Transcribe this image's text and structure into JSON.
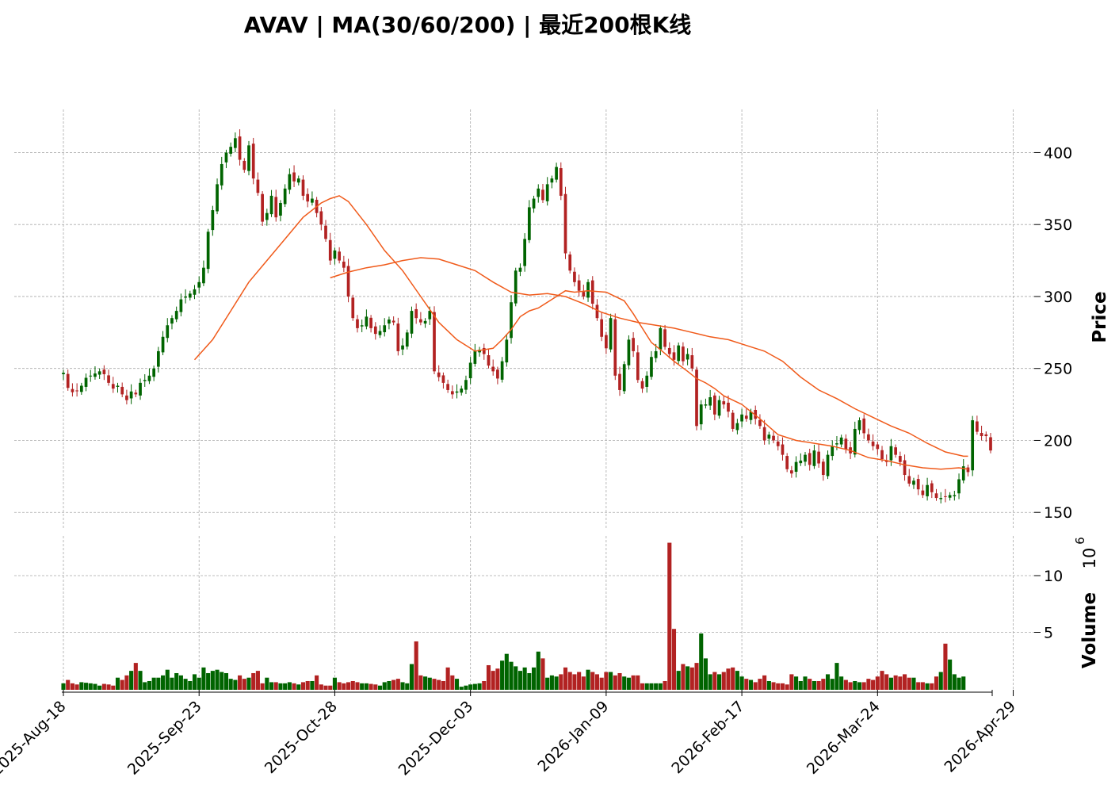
{
  "title": "AVAV  |  MA(30/60/200)  |  最近200根K线",
  "chart_data": [
    {
      "type": "candlestick",
      "ticker": "AVAV",
      "ylabel": "Price",
      "ylim": [
        138,
        430
      ],
      "yticks": [
        150,
        200,
        250,
        300,
        350,
        400
      ],
      "grid": true,
      "colors": {
        "up": "#006400",
        "down": "#b22222",
        "ma": "#f05a1a"
      },
      "x_tick_labels": [
        "2025-Aug-18",
        "2025-Sep-23",
        "2025-Oct-28",
        "2025-Dec-03",
        "2026-Jan-09",
        "2026-Feb-17",
        "2026-Mar-24",
        "2026-Apr-29"
      ],
      "closes": [
        247.0,
        236.5,
        233.5,
        234.5,
        238.0,
        243.5,
        245.0,
        246.5,
        248.0,
        246.0,
        240.0,
        236.0,
        238.0,
        232.0,
        228.0,
        234.0,
        232.0,
        240.0,
        242.0,
        245.0,
        250.0,
        262.0,
        272.0,
        280.0,
        285.0,
        290.0,
        298.0,
        300.0,
        302.0,
        305.0,
        310.0,
        320.0,
        345.0,
        360.0,
        378.0,
        392.0,
        400.0,
        404.0,
        410.0,
        395.0,
        388.0,
        405.0,
        382.0,
        372.0,
        352.0,
        358.0,
        370.0,
        355.0,
        365.0,
        375.0,
        385.0,
        380.0,
        382.0,
        370.0,
        366.0,
        368.0,
        358.0,
        350.0,
        340.0,
        325.0,
        332.0,
        325.0,
        320.0,
        300.0,
        285.0,
        278.0,
        280.0,
        286.0,
        278.0,
        274.0,
        276.0,
        280.0,
        284.0,
        282.0,
        262.0,
        266.0,
        275.0,
        290.0,
        285.0,
        282.0,
        283.0,
        290.0,
        248.0,
        244.0,
        240.0,
        235.0,
        232.0,
        234.0,
        236.0,
        242.0,
        254.0,
        262.0,
        263.0,
        260.0,
        252.0,
        248.0,
        243.0,
        255.0,
        270.0,
        296.0,
        318.0,
        320.0,
        340.0,
        362.0,
        368.0,
        375.0,
        367.0,
        378.0,
        382.0,
        390.0,
        370.0,
        330.0,
        318.0,
        310.0,
        304.0,
        300.0,
        310.0,
        295.0,
        285.0,
        272.0,
        264.0,
        285.0,
        245.0,
        235.0,
        253.0,
        270.0,
        262.0,
        242.0,
        236.0,
        245.0,
        258.0,
        262.0,
        278.0,
        265.0,
        260.0,
        256.0,
        266.0,
        255.0,
        260.0,
        250.0,
        210.0,
        225.0,
        225.0,
        230.0,
        218.0,
        228.0,
        225.0,
        220.0,
        208.0,
        212.0,
        218.0,
        215.0,
        220.0,
        215.0,
        210.0,
        200.0,
        204.0,
        200.0,
        196.0,
        190.0,
        180.0,
        177.0,
        185.0,
        186.0,
        190.0,
        183.0,
        193.0,
        184.0,
        176.0,
        190.0,
        196.0,
        198.0,
        202.0,
        194.0,
        191.0,
        208.0,
        214.0,
        205.0,
        200.0,
        196.0,
        194.0,
        187.0,
        185.0,
        196.0,
        190.0,
        185.0,
        176.0,
        170.0,
        172.0,
        166.0,
        162.0,
        169.0,
        164.0,
        160.0,
        160.0,
        161.0,
        162.0,
        162.0,
        173.0,
        182.0,
        178.0,
        214.0,
        206.0,
        203.0,
        203.0,
        193.0
      ],
      "ma_lines": [
        {
          "x": [
            29.0,
            33.0,
            37.0,
            41.0,
            45.0,
            49.0,
            53.0,
            57.0,
            59.0,
            61.0,
            63.0,
            67.0,
            71.0,
            75.0,
            79.0,
            83.0,
            87.0,
            91.0,
            95.0,
            97.0,
            99.0,
            101.0,
            103.0,
            105.0,
            107.0,
            109.0,
            111.0,
            113.0,
            116.0,
            120.0,
            124.0,
            126.0,
            128.0,
            130.0,
            132.0,
            135.0,
            138.0,
            140.0,
            142.0,
            144.0,
            146.0,
            150.0,
            154.0,
            158.0,
            162.0,
            166.0,
            170.0,
            174.0,
            178.0,
            182.0,
            186.0,
            190.0,
            194.0,
            198.0,
            200.0
          ],
          "y": [
            256.0,
            270.0,
            290.0,
            310.0,
            325.0,
            340.0,
            355.0,
            365.0,
            368.0,
            370.0,
            366.0,
            350.0,
            332.0,
            318.0,
            300.0,
            282.0,
            270.0,
            262.0,
            264.0,
            270.0,
            277.0,
            286.0,
            290.0,
            292.0,
            296.0,
            300.0,
            304.0,
            303.0,
            304.0,
            303.0,
            297.0,
            288.0,
            278.0,
            268.0,
            263.0,
            255.0,
            248.0,
            243.0,
            240.0,
            236.0,
            231.0,
            225.0,
            215.0,
            204.0,
            200.0,
            198.0,
            196.0,
            193.0,
            188.0,
            186.0,
            183.0,
            181.0,
            180.0,
            181.0,
            180.0
          ]
        },
        {
          "x": [
            59.0,
            63.0,
            67.0,
            71.0,
            75.0,
            79.0,
            83.0,
            87.0,
            91.0,
            95.0,
            99.0,
            103.0,
            107.0,
            111.0,
            115.0,
            119.0,
            123.0,
            127.0,
            131.0,
            135.0,
            139.0,
            143.0,
            147.0,
            151.0,
            155.0,
            159.0,
            163.0,
            167.0,
            171.0,
            175.0,
            179.0,
            183.0,
            187.0,
            191.0,
            195.0,
            199.0,
            200.0
          ],
          "y": [
            313.0,
            317.0,
            320.0,
            322.0,
            325.0,
            327.0,
            326.0,
            322.0,
            318.0,
            310.0,
            303.0,
            301.0,
            302.0,
            300.0,
            295.0,
            289.0,
            285.0,
            282.0,
            280.0,
            278.0,
            275.0,
            272.0,
            270.0,
            266.0,
            262.0,
            255.0,
            244.0,
            235.0,
            229.0,
            222.0,
            216.0,
            210.0,
            205.0,
            198.0,
            192.0,
            189.0,
            189.0
          ]
        }
      ]
    },
    {
      "type": "bar",
      "ylabel": "Volume",
      "scale_label": "10",
      "scale_exp": "6",
      "yticks": [
        5,
        10
      ],
      "values": [
        0.5,
        0.8,
        0.5,
        0.4,
        0.6,
        0.55,
        0.5,
        0.45,
        0.3,
        0.45,
        0.4,
        0.3,
        1.0,
        0.8,
        1.2,
        1.6,
        2.3,
        1.6,
        0.6,
        0.7,
        1.0,
        1.0,
        1.2,
        1.7,
        1.0,
        1.4,
        1.2,
        0.9,
        0.7,
        1.3,
        1.0,
        1.9,
        1.4,
        1.6,
        1.7,
        1.5,
        1.4,
        0.9,
        0.8,
        1.2,
        0.9,
        1.0,
        1.4,
        1.6,
        0.5,
        1.0,
        0.6,
        0.6,
        0.5,
        0.5,
        0.6,
        0.5,
        0.4,
        0.6,
        0.7,
        0.7,
        1.2,
        0.4,
        0.3,
        0.3,
        1.0,
        0.6,
        0.5,
        0.6,
        0.7,
        0.6,
        0.5,
        0.5,
        0.45,
        0.4,
        0.3,
        0.6,
        0.7,
        0.8,
        0.9,
        0.6,
        0.5,
        2.2,
        4.2,
        1.2,
        1.1,
        1.0,
        0.9,
        0.8,
        0.7,
        1.9,
        1.2,
        0.9,
        0.2,
        0.3,
        0.4,
        0.45,
        0.5,
        0.7,
        2.1,
        1.6,
        1.8,
        2.5,
        3.1,
        2.4,
        2.0,
        1.6,
        1.9,
        1.4,
        1.9,
        3.3,
        2.7,
        1.0,
        1.2,
        1.1,
        1.3,
        1.9,
        1.5,
        1.3,
        1.5,
        1.1,
        1.7,
        1.5,
        1.3,
        1.0,
        1.5,
        1.5,
        1.2,
        1.4,
        1.1,
        1.0,
        1.2,
        1.2,
        0.5,
        0.5,
        0.5,
        0.5,
        0.5,
        0.7,
        12.9,
        5.3,
        1.6,
        2.2,
        2.0,
        1.9,
        2.3,
        4.9,
        2.7,
        1.3,
        1.5,
        1.3,
        1.5,
        1.8,
        1.9,
        1.6,
        1.1,
        0.9,
        0.8,
        0.6,
        0.9,
        1.2,
        0.7,
        0.6,
        0.5,
        0.5,
        0.4,
        1.3,
        1.1,
        0.7,
        1.1,
        0.9,
        0.7,
        0.7,
        0.9,
        1.3,
        0.9,
        2.3,
        1.1,
        0.8,
        0.6,
        0.7,
        0.6,
        0.6,
        0.9,
        0.8,
        1.1,
        1.6,
        1.3,
        1.0,
        1.2,
        1.1,
        1.3,
        1.0,
        1.0,
        0.6,
        0.6,
        0.5,
        0.5,
        1.1,
        1.5,
        4.0,
        2.6,
        1.3,
        1.0,
        1.1
      ]
    }
  ]
}
